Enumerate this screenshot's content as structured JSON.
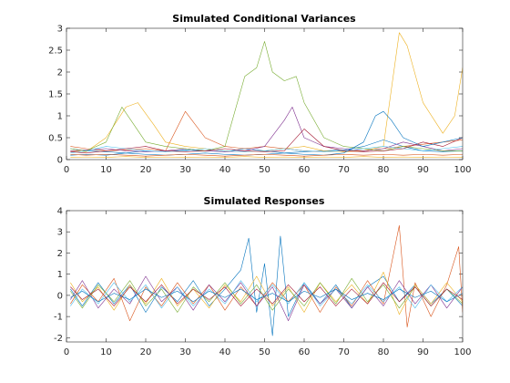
{
  "chart_data": [
    {
      "type": "line",
      "title": "Simulated Conditional Variances",
      "xlabel": "",
      "ylabel": "",
      "xlim": [
        0,
        100
      ],
      "ylim": [
        0,
        3
      ],
      "xticks": [
        0,
        10,
        20,
        30,
        40,
        50,
        60,
        70,
        80,
        90,
        100
      ],
      "yticks": [
        0,
        0.5,
        1,
        1.5,
        2,
        2.5,
        3
      ],
      "ytick_labels": [
        "0",
        "0.5",
        "1",
        "1.5",
        "2",
        "2.5",
        "3"
      ],
      "grid": false,
      "legend": "none",
      "colors": [
        "#0072BD",
        "#D95319",
        "#EDB120",
        "#7E2F8E",
        "#77AC30",
        "#4DBEEE",
        "#A2142F"
      ],
      "series": [
        {
          "x": [
            1,
            5,
            10,
            15,
            20,
            25,
            30,
            35,
            40,
            45,
            50,
            55,
            60,
            65,
            70,
            75,
            80,
            85,
            90,
            95,
            100
          ],
          "values": [
            0.25,
            0.2,
            0.18,
            0.15,
            0.2,
            0.18,
            0.22,
            0.2,
            0.18,
            0.25,
            0.2,
            0.15,
            0.18,
            0.2,
            0.22,
            0.3,
            0.45,
            0.3,
            0.2,
            0.18,
            0.2
          ]
        },
        {
          "x": [
            1,
            5,
            10,
            15,
            20,
            25,
            30,
            35,
            40,
            45,
            50,
            55,
            60,
            65,
            70,
            75,
            80,
            85,
            90,
            95,
            100
          ],
          "values": [
            0.3,
            0.25,
            0.2,
            0.22,
            0.25,
            0.2,
            1.1,
            0.5,
            0.3,
            0.25,
            0.3,
            0.25,
            0.2,
            0.18,
            0.2,
            0.2,
            0.25,
            0.3,
            0.35,
            0.4,
            0.45
          ]
        },
        {
          "x": [
            1,
            5,
            10,
            15,
            18,
            22,
            25,
            30,
            35,
            40,
            45,
            50,
            55,
            60,
            65,
            70,
            75,
            80,
            84,
            86,
            90,
            95,
            98,
            100
          ],
          "values": [
            0.2,
            0.18,
            0.5,
            1.2,
            1.3,
            0.8,
            0.4,
            0.3,
            0.25,
            0.2,
            0.18,
            0.2,
            0.25,
            0.3,
            0.2,
            0.18,
            0.2,
            0.3,
            2.9,
            2.6,
            1.3,
            0.6,
            1.0,
            2.1
          ]
        },
        {
          "x": [
            1,
            5,
            10,
            15,
            20,
            25,
            30,
            35,
            40,
            45,
            50,
            55,
            57,
            60,
            65,
            70,
            75,
            80,
            85,
            90,
            95,
            100
          ],
          "values": [
            0.2,
            0.22,
            0.25,
            0.2,
            0.18,
            0.2,
            0.25,
            0.2,
            0.18,
            0.2,
            0.3,
            0.9,
            1.2,
            0.5,
            0.3,
            0.25,
            0.2,
            0.25,
            0.4,
            0.3,
            0.2,
            0.25
          ]
        },
        {
          "x": [
            1,
            5,
            10,
            14,
            17,
            20,
            25,
            30,
            35,
            40,
            45,
            48,
            50,
            52,
            55,
            58,
            60,
            65,
            70,
            75,
            80,
            85,
            90,
            95,
            100
          ],
          "values": [
            0.25,
            0.2,
            0.4,
            1.2,
            0.8,
            0.4,
            0.3,
            0.25,
            0.2,
            0.3,
            1.9,
            2.1,
            2.7,
            2.0,
            1.8,
            1.9,
            1.3,
            0.5,
            0.3,
            0.25,
            0.2,
            0.3,
            0.25,
            0.2,
            0.2
          ]
        },
        {
          "x": [
            1,
            5,
            10,
            15,
            20,
            25,
            30,
            35,
            40,
            45,
            50,
            55,
            60,
            65,
            70,
            75,
            80,
            85,
            90,
            95,
            100
          ],
          "values": [
            0.15,
            0.2,
            0.3,
            0.25,
            0.2,
            0.18,
            0.2,
            0.25,
            0.2,
            0.18,
            0.2,
            0.25,
            0.2,
            0.18,
            0.2,
            0.25,
            0.3,
            0.25,
            0.2,
            0.25,
            0.3
          ]
        },
        {
          "x": [
            1,
            5,
            10,
            15,
            20,
            25,
            30,
            35,
            40,
            45,
            50,
            55,
            60,
            65,
            70,
            75,
            80,
            85,
            90,
            95,
            100
          ],
          "values": [
            0.18,
            0.15,
            0.2,
            0.25,
            0.3,
            0.2,
            0.18,
            0.2,
            0.25,
            0.2,
            0.18,
            0.2,
            0.7,
            0.3,
            0.2,
            0.18,
            0.2,
            0.25,
            0.4,
            0.3,
            0.5
          ]
        },
        {
          "x": [
            1,
            5,
            10,
            15,
            20,
            25,
            30,
            35,
            40,
            45,
            50,
            55,
            60,
            65,
            70,
            75,
            78,
            80,
            82,
            85,
            90,
            95,
            100
          ],
          "values": [
            0.1,
            0.12,
            0.1,
            0.15,
            0.12,
            0.1,
            0.12,
            0.15,
            0.12,
            0.1,
            0.12,
            0.15,
            0.12,
            0.1,
            0.15,
            0.4,
            1.0,
            1.1,
            0.9,
            0.5,
            0.3,
            0.4,
            0.5
          ]
        },
        {
          "x": [
            1,
            5,
            10,
            15,
            20,
            25,
            30,
            35,
            40,
            45,
            50,
            55,
            60,
            65,
            70,
            75,
            80,
            85,
            90,
            95,
            100
          ],
          "values": [
            0.12,
            0.1,
            0.12,
            0.1,
            0.08,
            0.1,
            0.12,
            0.1,
            0.08,
            0.1,
            0.12,
            0.1,
            0.08,
            0.1,
            0.12,
            0.1,
            0.12,
            0.1,
            0.12,
            0.1,
            0.12
          ]
        },
        {
          "x": [
            1,
            5,
            10,
            15,
            20,
            25,
            30,
            35,
            40,
            45,
            50,
            55,
            60,
            65,
            70,
            75,
            80,
            85,
            90,
            95,
            100
          ],
          "values": [
            0.05,
            0.06,
            0.05,
            0.07,
            0.05,
            0.06,
            0.05,
            0.06,
            0.05,
            0.07,
            0.05,
            0.06,
            0.05,
            0.06,
            0.05,
            0.07,
            0.05,
            0.06,
            0.05,
            0.06,
            0.05
          ]
        }
      ]
    },
    {
      "type": "line",
      "title": "Simulated Responses",
      "xlabel": "",
      "ylabel": "",
      "xlim": [
        0,
        100
      ],
      "ylim": [
        -2.2,
        4
      ],
      "xticks": [
        0,
        10,
        20,
        30,
        40,
        50,
        60,
        70,
        80,
        90,
        100
      ],
      "yticks": [
        -2,
        -1,
        0,
        1,
        2,
        3,
        4
      ],
      "ytick_labels": [
        "-2",
        "-1",
        "0",
        "1",
        "2",
        "3",
        "4"
      ],
      "grid": false,
      "legend": "none",
      "colors": [
        "#0072BD",
        "#D95319",
        "#EDB120",
        "#7E2F8E",
        "#77AC30",
        "#4DBEEE",
        "#A2142F"
      ],
      "series": [
        {
          "x": [
            1,
            4,
            8,
            12,
            16,
            20,
            24,
            28,
            32,
            36,
            40,
            44,
            46,
            48,
            50,
            52,
            54,
            56,
            60,
            64,
            68,
            72,
            76,
            80,
            84,
            88,
            92,
            96,
            100
          ],
          "values": [
            0.3,
            -0.5,
            0.6,
            -0.4,
            0.5,
            -0.8,
            0.4,
            -0.3,
            0.7,
            -0.5,
            0.3,
            1.2,
            2.7,
            -0.8,
            1.5,
            -1.9,
            2.8,
            -1.0,
            0.6,
            -0.4,
            0.5,
            -0.6,
            0.4,
            0.9,
            -0.3,
            0.5,
            -0.4,
            0.3,
            -0.5
          ]
        },
        {
          "x": [
            1,
            4,
            8,
            12,
            16,
            20,
            24,
            28,
            32,
            36,
            40,
            44,
            48,
            52,
            56,
            60,
            64,
            68,
            72,
            76,
            80,
            84,
            86,
            88,
            92,
            96,
            99,
            100
          ],
          "values": [
            -0.4,
            0.5,
            -0.3,
            0.8,
            -1.2,
            0.4,
            -0.5,
            0.6,
            -0.4,
            0.5,
            -0.7,
            0.4,
            -0.5,
            0.6,
            -0.3,
            0.5,
            -0.8,
            0.4,
            -0.5,
            0.7,
            -0.4,
            3.3,
            -1.5,
            0.6,
            -1.0,
            0.5,
            2.3,
            -0.8
          ]
        },
        {
          "x": [
            1,
            4,
            8,
            12,
            16,
            20,
            24,
            28,
            32,
            36,
            40,
            44,
            48,
            52,
            56,
            60,
            64,
            68,
            72,
            76,
            80,
            84,
            88,
            92,
            96,
            100
          ],
          "values": [
            0.6,
            -0.3,
            0.4,
            -0.7,
            0.5,
            -0.4,
            0.8,
            -0.5,
            0.3,
            -0.6,
            0.5,
            -0.3,
            0.9,
            -0.5,
            0.4,
            -0.8,
            0.6,
            -0.3,
            0.5,
            -0.4,
            1.1,
            -0.9,
            0.5,
            -0.4,
            0.6,
            -0.3
          ]
        },
        {
          "x": [
            1,
            4,
            8,
            12,
            16,
            20,
            24,
            28,
            32,
            36,
            40,
            44,
            48,
            52,
            56,
            60,
            64,
            68,
            72,
            76,
            80,
            84,
            88,
            92,
            96,
            100
          ],
          "values": [
            -0.2,
            0.7,
            -0.6,
            0.3,
            -0.4,
            0.9,
            -0.3,
            0.4,
            -0.7,
            0.5,
            -0.3,
            0.6,
            -0.5,
            0.4,
            -1.2,
            0.5,
            -0.4,
            0.3,
            -0.6,
            0.4,
            -0.5,
            0.7,
            -0.4,
            0.5,
            -0.6,
            0.4
          ]
        },
        {
          "x": [
            1,
            4,
            8,
            12,
            16,
            20,
            24,
            28,
            32,
            36,
            40,
            44,
            48,
            52,
            56,
            60,
            64,
            68,
            72,
            76,
            80,
            84,
            88,
            92,
            96,
            100
          ],
          "values": [
            0.2,
            -0.6,
            0.5,
            -0.3,
            0.7,
            -0.5,
            0.3,
            -0.8,
            0.4,
            -0.3,
            0.6,
            -0.4,
            0.5,
            -0.7,
            0.3,
            -0.5,
            0.6,
            -0.4,
            0.8,
            -0.3,
            0.5,
            -0.6,
            0.4,
            -0.5,
            0.3,
            -0.4
          ]
        },
        {
          "x": [
            1,
            4,
            8,
            12,
            16,
            20,
            24,
            28,
            32,
            36,
            40,
            44,
            48,
            52,
            56,
            60,
            64,
            68,
            72,
            76,
            80,
            84,
            88,
            92,
            96,
            100
          ],
          "values": [
            -0.5,
            0.3,
            -0.4,
            0.6,
            -0.3,
            0.5,
            -0.6,
            0.4,
            -0.5,
            0.3,
            -0.4,
            0.7,
            -0.3,
            0.5,
            -0.4,
            0.6,
            -0.5,
            0.3,
            -0.4,
            0.5,
            -0.3,
            0.4,
            -0.6,
            0.5,
            -0.3,
            0.4
          ]
        },
        {
          "x": [
            1,
            4,
            8,
            12,
            16,
            20,
            24,
            28,
            32,
            36,
            40,
            44,
            48,
            52,
            56,
            60,
            64,
            68,
            72,
            76,
            80,
            84,
            88,
            92,
            96,
            100
          ],
          "values": [
            0.4,
            -0.2,
            0.3,
            -0.5,
            0.4,
            -0.3,
            0.5,
            -0.4,
            0.3,
            -0.2,
            0.4,
            -0.5,
            0.3,
            -0.4,
            0.5,
            -0.3,
            0.4,
            -0.5,
            0.3,
            -0.4,
            0.6,
            -0.3,
            0.4,
            -0.5,
            0.3,
            -0.2
          ]
        },
        {
          "x": [
            1,
            4,
            8,
            12,
            16,
            20,
            24,
            28,
            32,
            36,
            40,
            44,
            48,
            52,
            56,
            60,
            64,
            68,
            72,
            76,
            80,
            84,
            88,
            92,
            96,
            100
          ],
          "values": [
            -0.1,
            0.2,
            -0.3,
            0.1,
            -0.2,
            0.3,
            -0.1,
            0.2,
            -0.3,
            0.2,
            -0.1,
            0.3,
            -0.2,
            0.1,
            -0.3,
            0.2,
            -0.1,
            0.3,
            -0.2,
            0.1,
            -0.2,
            0.3,
            -0.1,
            0.2,
            -0.3,
            0.1
          ]
        }
      ]
    }
  ]
}
